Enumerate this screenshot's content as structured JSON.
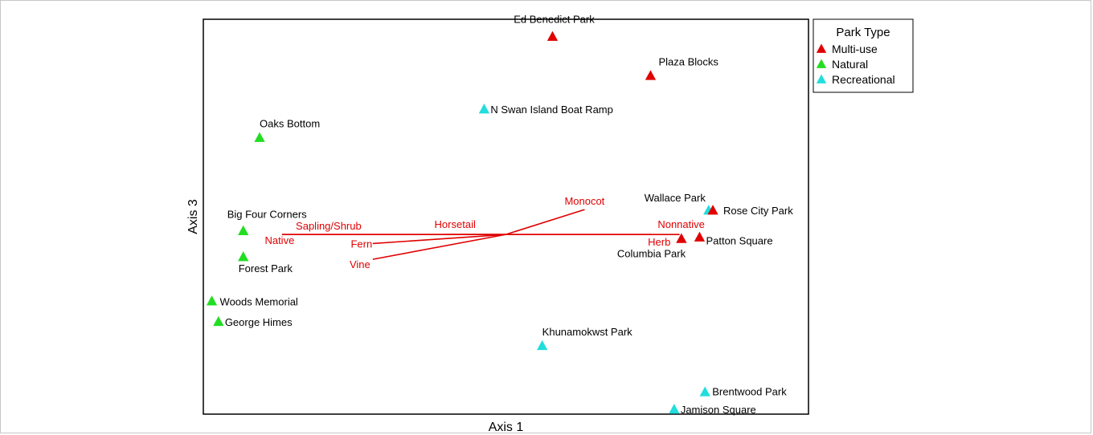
{
  "chart_data": {
    "type": "scatter",
    "xlabel": "Axis 1",
    "ylabel": "Axis 3",
    "legend": {
      "title": "Park Type",
      "position": "top-right, outside plot",
      "entries": [
        {
          "label": "Multi-use",
          "color": "#e00000"
        },
        {
          "label": "Natural",
          "color": "#22dd22"
        },
        {
          "label": "Recreational",
          "color": "#22dddd"
        }
      ]
    },
    "marker": "triangle",
    "grid": false,
    "xlim": [
      0,
      100
    ],
    "ylim": [
      0,
      100
    ],
    "points": [
      {
        "name": "Ed Benedict Park",
        "type": "Multi-use",
        "x": 57.7,
        "y": 95.6
      },
      {
        "name": "Plaza Blocks",
        "type": "Multi-use",
        "x": 73.9,
        "y": 85.7
      },
      {
        "name": "N Swan Island Boat Ramp",
        "type": "Recreational",
        "x": 46.4,
        "y": 77.2
      },
      {
        "name": "Oaks Bottom",
        "type": "Natural",
        "x": 9.3,
        "y": 70.0
      },
      {
        "name": "Wallace Park",
        "type": "Recreational",
        "x": 83.5,
        "y": 51.6
      },
      {
        "name": "Rose City Park",
        "type": "Multi-use",
        "x": 84.2,
        "y": 51.6
      },
      {
        "name": "Big Four Corners",
        "type": "Natural",
        "x": 6.6,
        "y": 46.4
      },
      {
        "name": "Columbia Park",
        "type": "Multi-use",
        "x": 79.0,
        "y": 44.4
      },
      {
        "name": "Patton Square",
        "type": "Multi-use",
        "x": 82.0,
        "y": 44.8
      },
      {
        "name": "Forest Park",
        "type": "Natural",
        "x": 6.6,
        "y": 39.8
      },
      {
        "name": "Woods Memorial",
        "type": "Natural",
        "x": 1.4,
        "y": 28.6
      },
      {
        "name": "George Himes",
        "type": "Natural",
        "x": 2.5,
        "y": 23.4
      },
      {
        "name": "Khunamokwst Park",
        "type": "Recreational",
        "x": 56.0,
        "y": 17.3
      },
      {
        "name": "Brentwood Park",
        "type": "Recreational",
        "x": 82.9,
        "y": 5.6
      },
      {
        "name": "Jamison Square",
        "type": "Recreational",
        "x": 77.8,
        "y": 1.2
      }
    ],
    "vectors": {
      "origin": {
        "x": 50.0,
        "y": 45.5
      },
      "items": [
        {
          "label": "Monocot",
          "x": 63.0,
          "y": 51.8
        },
        {
          "label": "Nonnative",
          "x": 78.7,
          "y": 45.5
        },
        {
          "label": "Herb",
          "x": 74.0,
          "y": 45.5
        },
        {
          "label": "Horsetail",
          "x": 40.0,
          "y": 45.5
        },
        {
          "label": "Sapling/Shrub",
          "x": 13.0,
          "y": 45.5
        },
        {
          "label": "Native",
          "x": 13.0,
          "y": 45.5
        },
        {
          "label": "Fern",
          "x": 28.0,
          "y": 43.2
        },
        {
          "label": "Vine",
          "x": 28.0,
          "y": 39.2
        }
      ]
    }
  }
}
